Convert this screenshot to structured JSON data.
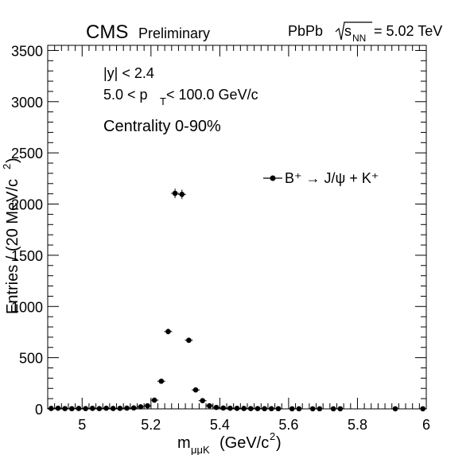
{
  "header": {
    "experiment": "CMS",
    "status": "Preliminary",
    "system": "PbPb",
    "energy_unit": "= 5.02 TeV"
  },
  "annotations": {
    "rapidity": "|y| < 2.4",
    "pt_range_left": "5.0 < p",
    "pt_sub": "T",
    "pt_range_right": " < 100.0 GeV/c",
    "centrality": "Centrality 0-90%"
  },
  "legend": {
    "entry": "B⁺ → J/ψ + K⁺"
  },
  "chart_data": {
    "type": "scatter",
    "title": "",
    "xlabel": "m_{μμK} (GeV/c²)",
    "ylabel": "Entries / (20 MeV/c²)",
    "xlim": [
      4.9,
      6.0
    ],
    "ylim": [
      0,
      3550
    ],
    "xticks": [
      5,
      5.2,
      5.4,
      5.6,
      5.8,
      6
    ],
    "yticks": [
      0,
      500,
      1000,
      1500,
      2000,
      2500,
      3000,
      3500
    ],
    "series": [
      {
        "name": "B⁺ → J/ψ + K⁺",
        "points": [
          {
            "x": 4.91,
            "y": 4
          },
          {
            "x": 4.93,
            "y": 6
          },
          {
            "x": 4.95,
            "y": 3
          },
          {
            "x": 4.97,
            "y": 2
          },
          {
            "x": 4.99,
            "y": 4
          },
          {
            "x": 5.01,
            "y": 3
          },
          {
            "x": 5.03,
            "y": 5
          },
          {
            "x": 5.05,
            "y": 3
          },
          {
            "x": 5.07,
            "y": 6
          },
          {
            "x": 5.09,
            "y": 4
          },
          {
            "x": 5.11,
            "y": 5
          },
          {
            "x": 5.13,
            "y": 7
          },
          {
            "x": 5.15,
            "y": 9
          },
          {
            "x": 5.17,
            "y": 20
          },
          {
            "x": 5.19,
            "y": 30
          },
          {
            "x": 5.21,
            "y": 85
          },
          {
            "x": 5.23,
            "y": 270
          },
          {
            "x": 5.25,
            "y": 755
          },
          {
            "x": 5.27,
            "y": 2105
          },
          {
            "x": 5.29,
            "y": 2095
          },
          {
            "x": 5.31,
            "y": 670
          },
          {
            "x": 5.33,
            "y": 185
          },
          {
            "x": 5.35,
            "y": 80
          },
          {
            "x": 5.37,
            "y": 30
          },
          {
            "x": 5.39,
            "y": 14
          },
          {
            "x": 5.41,
            "y": 8
          },
          {
            "x": 5.43,
            "y": 6
          },
          {
            "x": 5.45,
            "y": 5
          },
          {
            "x": 5.47,
            "y": 4
          },
          {
            "x": 5.49,
            "y": 3
          },
          {
            "x": 5.51,
            "y": 3
          },
          {
            "x": 5.53,
            "y": 2
          },
          {
            "x": 5.55,
            "y": 2
          },
          {
            "x": 5.57,
            "y": 2
          },
          {
            "x": 5.61,
            "y": 1
          },
          {
            "x": 5.63,
            "y": 1
          },
          {
            "x": 5.67,
            "y": 1
          },
          {
            "x": 5.69,
            "y": 1
          },
          {
            "x": 5.73,
            "y": 1
          },
          {
            "x": 5.75,
            "y": 1
          },
          {
            "x": 5.91,
            "y": 1
          },
          {
            "x": 5.99,
            "y": 1
          }
        ]
      }
    ]
  }
}
